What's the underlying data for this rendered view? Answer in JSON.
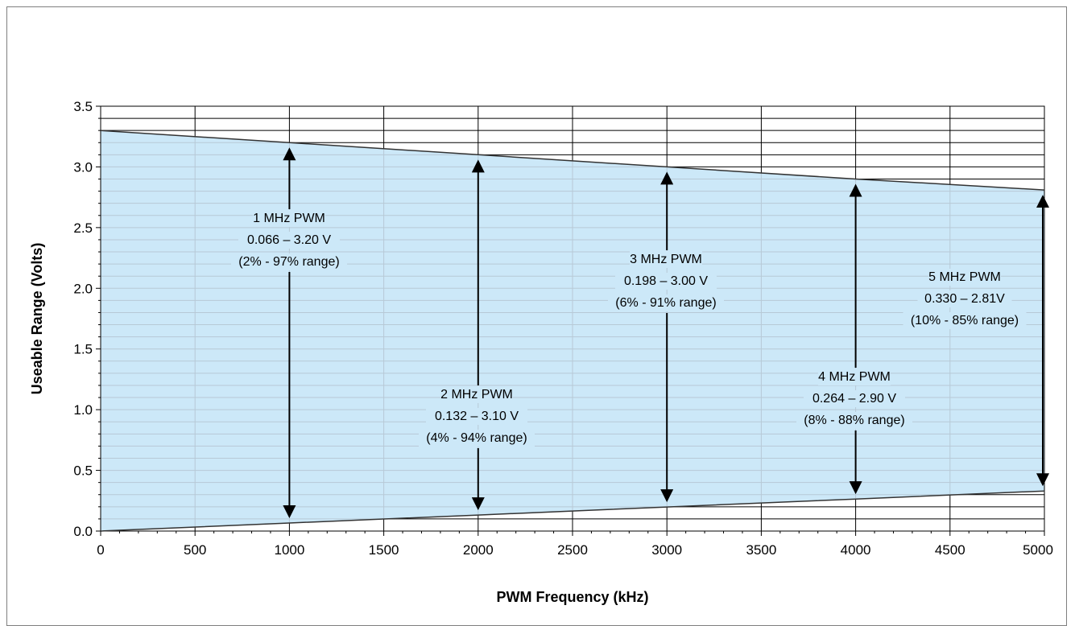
{
  "chart_data": {
    "type": "area",
    "title": "",
    "xlabel": "PWM Frequency (kHz)",
    "ylabel": "Useable Range (Volts)",
    "xlim": [
      0,
      5000
    ],
    "ylim": [
      0,
      3.5
    ],
    "x_ticks": [
      0,
      500,
      1000,
      1500,
      2000,
      2500,
      3000,
      3500,
      4000,
      4500,
      5000
    ],
    "x_tick_labels": [
      "0",
      "500",
      "1000",
      "1500",
      "2000",
      "2500",
      "3000",
      "3500",
      "4000",
      "4500",
      "5000"
    ],
    "y_ticks": [
      0,
      0.5,
      1.0,
      1.5,
      2.0,
      2.5,
      3.0,
      3.5
    ],
    "y_tick_labels": [
      "0.0",
      "0.5",
      "1.0",
      "1.5",
      "2.0",
      "2.5",
      "3.0",
      "3.5"
    ],
    "grid": true,
    "fill_color": "#cce8f8",
    "series": [
      {
        "x": [
          0,
          1000,
          2000,
          3000,
          4000,
          5000
        ],
        "values": [
          3.3,
          3.2,
          3.1,
          3.0,
          2.9,
          2.81
        ]
      },
      {
        "x": [
          0,
          1000,
          2000,
          3000,
          4000,
          5000
        ],
        "values": [
          0.0,
          0.066,
          0.132,
          0.198,
          0.264,
          0.33
        ]
      }
    ],
    "annotations": [
      {
        "x": 1000,
        "y_low": 0.066,
        "y_high": 3.2,
        "lines": [
          "1 MHz  PWM",
          "0.066 – 3.20 V",
          "(2% - 97% range)"
        ]
      },
      {
        "x": 2000,
        "y_low": 0.132,
        "y_high": 3.1,
        "lines": [
          "2 MHz  PWM",
          "0.132 – 3.10 V",
          "(4% - 94% range)"
        ]
      },
      {
        "x": 3000,
        "y_low": 0.198,
        "y_high": 3.0,
        "lines": [
          "3 MHz  PWM",
          "0.198 – 3.00 V",
          "(6% - 91% range)"
        ]
      },
      {
        "x": 4000,
        "y_low": 0.264,
        "y_high": 2.9,
        "lines": [
          "4 MHz  PWM",
          "0.264 – 2.90 V",
          "(8% - 88% range)"
        ]
      },
      {
        "x": 5000,
        "y_low": 0.33,
        "y_high": 2.81,
        "lines": [
          "5 MHz  PWM",
          "0.330 – 2.81V",
          "(10% - 85% range)"
        ]
      }
    ]
  }
}
